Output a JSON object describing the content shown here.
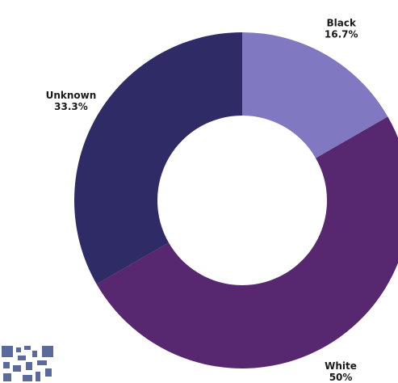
{
  "chart_data": {
    "type": "donut",
    "categories": [
      "Black",
      "White",
      "Unknown"
    ],
    "values": [
      16.7,
      50,
      33.3
    ],
    "value_labels": [
      "16.7%",
      "50%",
      "33.3%"
    ],
    "colors": [
      "#8078c0",
      "#57286f",
      "#2e2b66"
    ]
  }
}
